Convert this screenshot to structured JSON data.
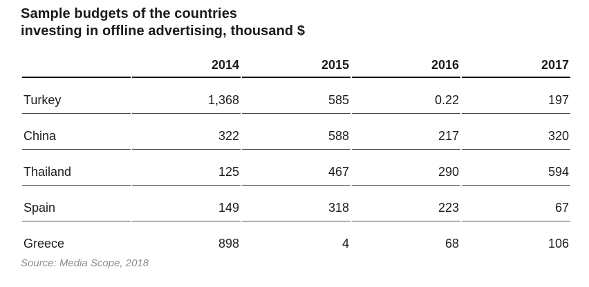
{
  "title_lines": [
    "Sample budgets of the countries",
    "investing in offline advertising, thousand $"
  ],
  "source_note": "Source: Media Scope, 2018",
  "colors": {
    "background": "#ffffff",
    "text": "#1a1a1a",
    "header_rule": "#141414",
    "row_rule": "#4a4a4a",
    "source_text": "#8c8c8c"
  },
  "table": {
    "columns": [
      "2014",
      "2015",
      "2016",
      "2017"
    ],
    "rows": [
      {
        "country": "Turkey",
        "values": [
          "1,368",
          "585",
          "0.22",
          "197"
        ]
      },
      {
        "country": "China",
        "values": [
          "322",
          "588",
          "217",
          "320"
        ]
      },
      {
        "country": "Thailand",
        "values": [
          "125",
          "467",
          "290",
          "594"
        ]
      },
      {
        "country": "Spain",
        "values": [
          "149",
          "318",
          "223",
          "67"
        ]
      },
      {
        "country": "Greece",
        "values": [
          "898",
          "4",
          "68",
          "106"
        ]
      }
    ]
  },
  "chart_data": {
    "type": "table",
    "title": "Sample budgets of the countries investing in offline advertising, thousand $",
    "categories": [
      "2014",
      "2015",
      "2016",
      "2017"
    ],
    "series": [
      {
        "name": "Turkey",
        "values": [
          1368,
          585,
          0.22,
          197
        ]
      },
      {
        "name": "China",
        "values": [
          322,
          588,
          217,
          320
        ]
      },
      {
        "name": "Thailand",
        "values": [
          125,
          467,
          290,
          594
        ]
      },
      {
        "name": "Spain",
        "values": [
          149,
          318,
          223,
          67
        ]
      },
      {
        "name": "Greece",
        "values": [
          898,
          4,
          68,
          106
        ]
      }
    ],
    "units": "thousand $",
    "source": "Source: Media Scope, 2018"
  }
}
